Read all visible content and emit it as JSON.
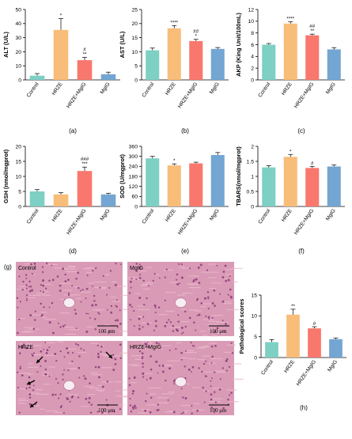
{
  "colors": {
    "Control": "#7dd0c3",
    "HRZE": "#f8bd79",
    "HRZE+MgIG": "#f8786d",
    "MgIG": "#73a6d2",
    "histo_bg": "#d99ab5",
    "histo_dots": "#8a3a78"
  },
  "panel_labels": [
    "(a)",
    "(b)",
    "(c)",
    "(d)",
    "(e)",
    "(f)",
    "(g)",
    "(h)"
  ],
  "histology": {
    "panel_label": "(g)",
    "images": [
      {
        "label": "Control",
        "scale": "100 μm",
        "arrows": 0
      },
      {
        "label": "MgIG",
        "scale": "100 μm",
        "arrows": 0
      },
      {
        "label": "HRZE",
        "scale": "100 μm",
        "arrows": 4
      },
      {
        "label": "HRZE+MgIG",
        "scale": "100 μm",
        "arrows": 0
      }
    ]
  },
  "chart_data": [
    {
      "type": "bar",
      "panel": "(a)",
      "ylabel": "ALT (U/L)",
      "ylim": [
        0,
        50
      ],
      "yticks": [
        0,
        10,
        20,
        30,
        40,
        50
      ],
      "categories": [
        "Control",
        "HRZE",
        "HRZE+MgIG",
        "MgIG"
      ],
      "values": [
        3,
        35.5,
        14,
        4
      ],
      "errors": [
        1.5,
        8,
        2,
        1.5
      ],
      "sig": [
        "",
        "*",
        "#\n**",
        ""
      ]
    },
    {
      "type": "bar",
      "panel": "(b)",
      "ylabel": "AST (U/L)",
      "ylim": [
        0,
        25
      ],
      "yticks": [
        0,
        5,
        10,
        15,
        20,
        25
      ],
      "categories": [
        "Control",
        "HRZE",
        "HRZE+MgIG",
        "MgIG"
      ],
      "values": [
        10.5,
        18.3,
        13.8,
        11
      ],
      "errors": [
        0.8,
        1,
        0.6,
        0.5
      ],
      "sig": [
        "",
        "****",
        "##\n*",
        ""
      ]
    },
    {
      "type": "bar",
      "panel": "(c)",
      "ylabel": "AKP (King Unit/100mL)",
      "ylim": [
        0,
        12
      ],
      "yticks": [
        0,
        2,
        4,
        6,
        8,
        10,
        12
      ],
      "categories": [
        "Control",
        "HRZE",
        "HRZE+MgIG",
        "MgIG"
      ],
      "values": [
        6,
        9.6,
        7.6,
        5.2
      ],
      "errors": [
        0.2,
        0.3,
        0.2,
        0.3
      ],
      "sig": [
        "",
        "****",
        "##\n**",
        ""
      ]
    },
    {
      "type": "bar",
      "panel": "(d)",
      "ylabel": "GSH (nmol/mgprot)",
      "ylim": [
        0,
        20
      ],
      "yticks": [
        0,
        5,
        10,
        15,
        20
      ],
      "categories": [
        "Control",
        "HRZE",
        "HRZE+MgIG",
        "MgIG"
      ],
      "values": [
        5,
        4,
        11.8,
        4
      ],
      "errors": [
        0.6,
        0.6,
        1.3,
        0.4
      ],
      "sig": [
        "",
        "",
        "###\n***",
        ""
      ]
    },
    {
      "type": "bar",
      "panel": "(e)",
      "ylabel": "SOD (U/mgprot)",
      "ylim": [
        0,
        360
      ],
      "yticks": [
        0,
        60,
        120,
        180,
        240,
        300,
        360
      ],
      "categories": [
        "Control",
        "HRZE",
        "HRZE+MgIG",
        "MgIG"
      ],
      "values": [
        288,
        246,
        258,
        308
      ],
      "errors": [
        12,
        9,
        7,
        15
      ],
      "sig": [
        "",
        "*",
        "",
        ""
      ]
    },
    {
      "type": "bar",
      "panel": "(f)",
      "ylabel": "TBARS(nmol/mgprot)",
      "ylim": [
        0,
        2
      ],
      "yticks": [
        0,
        0.5,
        1,
        1.5,
        2
      ],
      "categories": [
        "Control",
        "HRZE",
        "HRZE+MgIG",
        "MgIG"
      ],
      "values": [
        1.3,
        1.65,
        1.28,
        1.33
      ],
      "errors": [
        0.06,
        0.08,
        0.05,
        0.05
      ],
      "sig": [
        "",
        "*",
        "#",
        ""
      ]
    },
    {
      "type": "bar",
      "panel": "(h)",
      "ylabel": "Pathological scores",
      "ylim": [
        0,
        15
      ],
      "yticks": [
        0,
        5,
        10,
        15
      ],
      "categories": [
        "Control",
        "HRZE",
        "HRZE+MgIG",
        "MgIG"
      ],
      "values": [
        3.7,
        10.3,
        7,
        4.4
      ],
      "errors": [
        0.6,
        1.3,
        0.4,
        0.3
      ],
      "sig": [
        "",
        "**",
        "#",
        ""
      ]
    }
  ]
}
